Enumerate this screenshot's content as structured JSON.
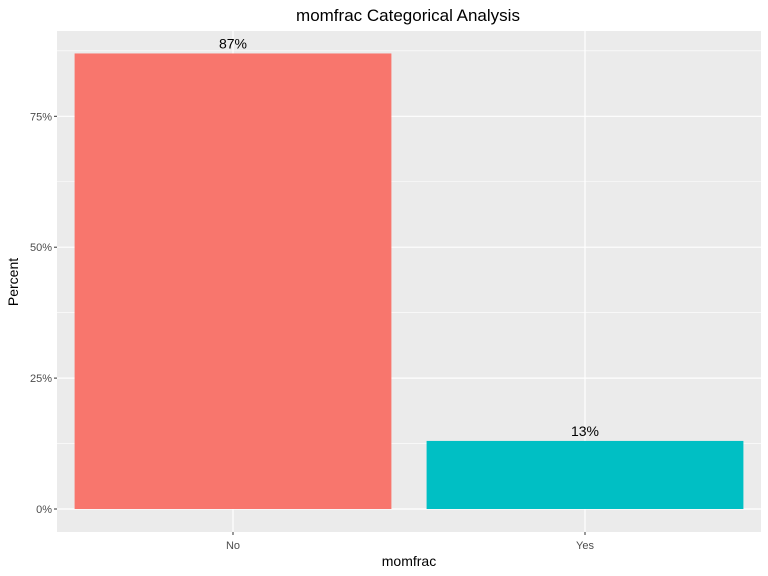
{
  "chart_data": {
    "type": "bar",
    "title": "momfrac Categorical Analysis",
    "xlabel": "momfrac",
    "ylabel": "Percent",
    "categories": [
      "No",
      "Yes"
    ],
    "values": [
      87,
      13
    ],
    "value_labels": [
      "87%",
      "13%"
    ],
    "ylim": [
      0,
      90
    ],
    "y_ticks": [
      0,
      25,
      50,
      75
    ],
    "y_tick_labels": [
      "0%",
      "25%",
      "50%",
      "75%"
    ],
    "grid": true,
    "legend": "none",
    "colors": [
      "#F8766D",
      "#00BFC4"
    ],
    "panel_background": "#EBEBEB",
    "grid_color": "#FFFFFF"
  }
}
